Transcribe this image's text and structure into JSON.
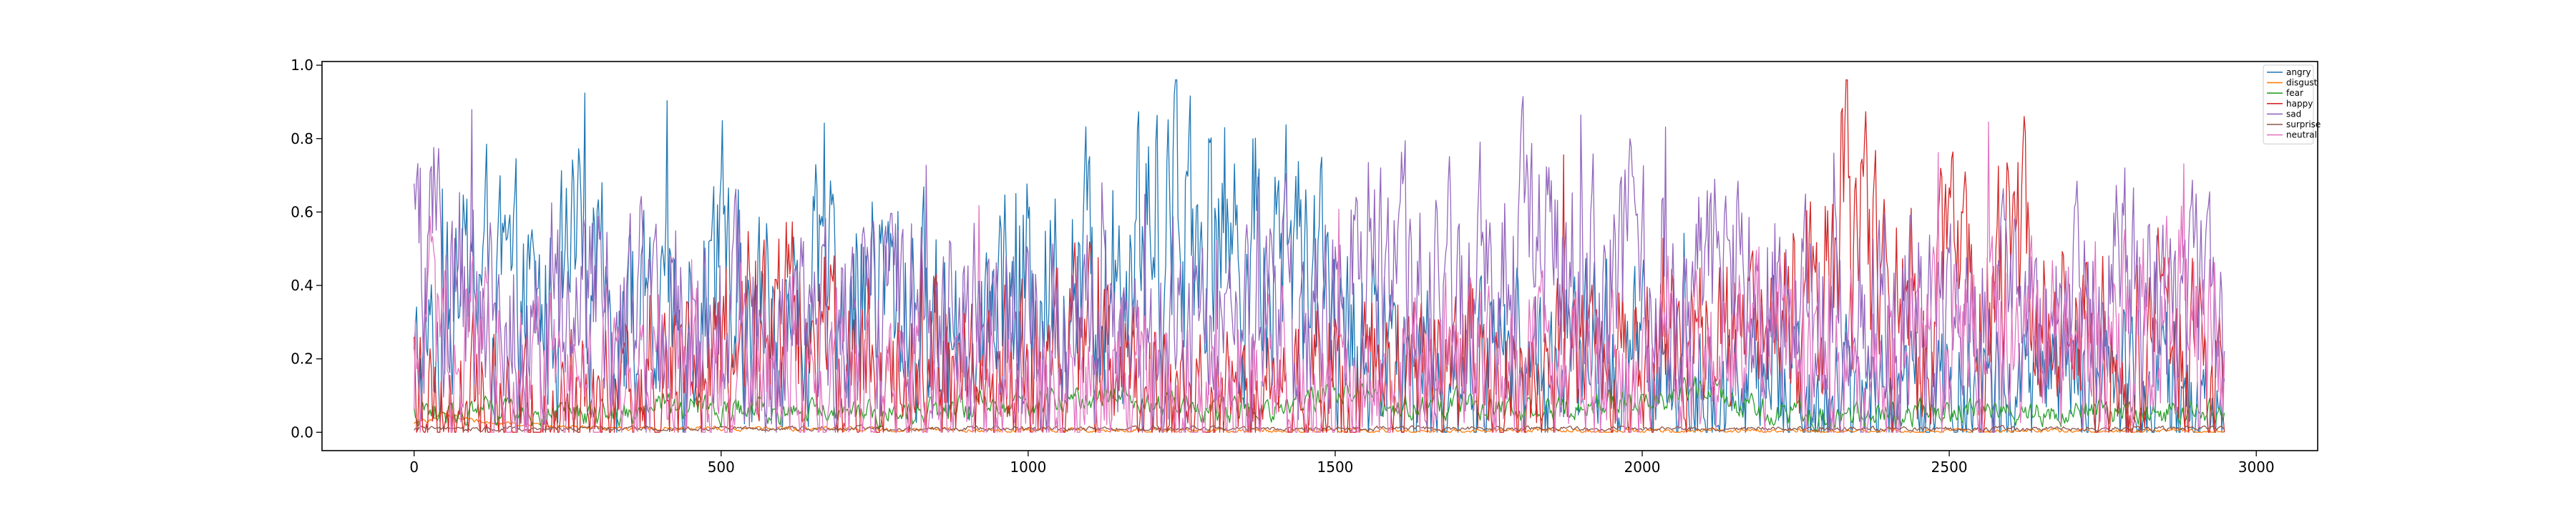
{
  "chart_data": {
    "type": "line",
    "title": "",
    "xlabel": "",
    "ylabel": "",
    "xlim": [
      -150,
      3100
    ],
    "ylim": [
      -0.05,
      1.01
    ],
    "n_points": 2950,
    "xticks": [
      0,
      500,
      1000,
      1500,
      2000,
      2500,
      3000
    ],
    "xtick_labels": [
      "0",
      "500",
      "1000",
      "1500",
      "2000",
      "2500",
      "3000"
    ],
    "yticks": [
      0.0,
      0.2,
      0.4,
      0.6,
      0.8,
      1.0
    ],
    "ytick_labels": [
      "0.0",
      "0.2",
      "0.4",
      "0.6",
      "0.8",
      "1.0"
    ],
    "grid": false,
    "legend_position": "top-right",
    "series": [
      {
        "name": "angry",
        "color": "#1f77b4",
        "anchors": [
          [
            0,
            0.15
          ],
          [
            60,
            0.3
          ],
          [
            100,
            0.42
          ],
          [
            150,
            0.36
          ],
          [
            200,
            0.3
          ],
          [
            260,
            0.4
          ],
          [
            300,
            0.38
          ],
          [
            350,
            0.3
          ],
          [
            400,
            0.25
          ],
          [
            450,
            0.4
          ],
          [
            500,
            0.45
          ],
          [
            550,
            0.35
          ],
          [
            600,
            0.3
          ],
          [
            650,
            0.35
          ],
          [
            700,
            0.38
          ],
          [
            750,
            0.4
          ],
          [
            800,
            0.35
          ],
          [
            850,
            0.3
          ],
          [
            900,
            0.32
          ],
          [
            950,
            0.4
          ],
          [
            1000,
            0.45
          ],
          [
            1050,
            0.4
          ],
          [
            1100,
            0.42
          ],
          [
            1150,
            0.52
          ],
          [
            1200,
            0.58
          ],
          [
            1250,
            0.68
          ],
          [
            1300,
            0.55
          ],
          [
            1350,
            0.5
          ],
          [
            1400,
            0.52
          ],
          [
            1450,
            0.45
          ],
          [
            1500,
            0.3
          ],
          [
            1550,
            0.22
          ],
          [
            1600,
            0.18
          ],
          [
            1650,
            0.2
          ],
          [
            1700,
            0.18
          ],
          [
            1750,
            0.22
          ],
          [
            1800,
            0.2
          ],
          [
            1850,
            0.18
          ],
          [
            1900,
            0.2
          ],
          [
            1950,
            0.22
          ],
          [
            2000,
            0.18
          ],
          [
            2050,
            0.15
          ],
          [
            2100,
            0.12
          ],
          [
            2150,
            0.12
          ],
          [
            2200,
            0.15
          ],
          [
            2250,
            0.12
          ],
          [
            2300,
            0.08
          ],
          [
            2350,
            0.1
          ],
          [
            2400,
            0.12
          ],
          [
            2450,
            0.1
          ],
          [
            2500,
            0.12
          ],
          [
            2550,
            0.12
          ],
          [
            2600,
            0.1
          ],
          [
            2650,
            0.12
          ],
          [
            2700,
            0.15
          ],
          [
            2750,
            0.12
          ],
          [
            2800,
            0.15
          ],
          [
            2850,
            0.12
          ],
          [
            2900,
            0.1
          ],
          [
            2950,
            0.1
          ]
        ]
      },
      {
        "name": "disgust",
        "color": "#ff7f0e",
        "anchors": [
          [
            0,
            0.02
          ],
          [
            50,
            0.05
          ],
          [
            100,
            0.03
          ],
          [
            200,
            0.02
          ],
          [
            300,
            0.01
          ],
          [
            600,
            0.01
          ],
          [
            1000,
            0.005
          ],
          [
            1500,
            0.005
          ],
          [
            2000,
            0.004
          ],
          [
            2500,
            0.004
          ],
          [
            2950,
            0.004
          ]
        ]
      },
      {
        "name": "fear",
        "color": "#2ca02c",
        "anchors": [
          [
            0,
            0.05
          ],
          [
            100,
            0.06
          ],
          [
            200,
            0.05
          ],
          [
            300,
            0.05
          ],
          [
            400,
            0.07
          ],
          [
            500,
            0.06
          ],
          [
            600,
            0.05
          ],
          [
            700,
            0.06
          ],
          [
            800,
            0.05
          ],
          [
            900,
            0.07
          ],
          [
            1000,
            0.08
          ],
          [
            1100,
            0.1
          ],
          [
            1150,
            0.12
          ],
          [
            1200,
            0.08
          ],
          [
            1300,
            0.06
          ],
          [
            1400,
            0.07
          ],
          [
            1500,
            0.12
          ],
          [
            1550,
            0.1
          ],
          [
            1600,
            0.07
          ],
          [
            1700,
            0.08
          ],
          [
            1800,
            0.06
          ],
          [
            1900,
            0.07
          ],
          [
            2000,
            0.08
          ],
          [
            2050,
            0.1
          ],
          [
            2100,
            0.12
          ],
          [
            2150,
            0.08
          ],
          [
            2200,
            0.06
          ],
          [
            2300,
            0.05
          ],
          [
            2400,
            0.05
          ],
          [
            2500,
            0.06
          ],
          [
            2600,
            0.05
          ],
          [
            2700,
            0.06
          ],
          [
            2800,
            0.05
          ],
          [
            2900,
            0.06
          ],
          [
            2950,
            0.05
          ]
        ]
      },
      {
        "name": "happy",
        "color": "#d62728",
        "anchors": [
          [
            0,
            0.12
          ],
          [
            100,
            0.1
          ],
          [
            150,
            0.12
          ],
          [
            200,
            0.08
          ],
          [
            300,
            0.08
          ],
          [
            400,
            0.12
          ],
          [
            500,
            0.25
          ],
          [
            550,
            0.3
          ],
          [
            600,
            0.35
          ],
          [
            650,
            0.28
          ],
          [
            700,
            0.22
          ],
          [
            750,
            0.18
          ],
          [
            800,
            0.2
          ],
          [
            850,
            0.22
          ],
          [
            900,
            0.18
          ],
          [
            1000,
            0.15
          ],
          [
            1100,
            0.2
          ],
          [
            1200,
            0.12
          ],
          [
            1300,
            0.08
          ],
          [
            1400,
            0.1
          ],
          [
            1500,
            0.12
          ],
          [
            1600,
            0.15
          ],
          [
            1700,
            0.18
          ],
          [
            1800,
            0.12
          ],
          [
            1900,
            0.15
          ],
          [
            2000,
            0.2
          ],
          [
            2100,
            0.22
          ],
          [
            2200,
            0.25
          ],
          [
            2300,
            0.45
          ],
          [
            2320,
            0.6
          ],
          [
            2350,
            0.5
          ],
          [
            2400,
            0.35
          ],
          [
            2450,
            0.3
          ],
          [
            2500,
            0.4
          ],
          [
            2550,
            0.32
          ],
          [
            2600,
            0.42
          ],
          [
            2650,
            0.4
          ],
          [
            2700,
            0.25
          ],
          [
            2800,
            0.22
          ],
          [
            2850,
            0.3
          ],
          [
            2900,
            0.2
          ],
          [
            2950,
            0.15
          ]
        ]
      },
      {
        "name": "sad",
        "color": "#9467bd",
        "anchors": [
          [
            0,
            0.42
          ],
          [
            20,
            0.5
          ],
          [
            60,
            0.4
          ],
          [
            100,
            0.3
          ],
          [
            200,
            0.3
          ],
          [
            250,
            0.28
          ],
          [
            300,
            0.35
          ],
          [
            350,
            0.38
          ],
          [
            400,
            0.28
          ],
          [
            450,
            0.35
          ],
          [
            500,
            0.3
          ],
          [
            550,
            0.28
          ],
          [
            600,
            0.25
          ],
          [
            700,
            0.28
          ],
          [
            800,
            0.32
          ],
          [
            850,
            0.3
          ],
          [
            900,
            0.28
          ],
          [
            1000,
            0.3
          ],
          [
            1100,
            0.3
          ],
          [
            1200,
            0.25
          ],
          [
            1300,
            0.22
          ],
          [
            1400,
            0.28
          ],
          [
            1500,
            0.35
          ],
          [
            1600,
            0.38
          ],
          [
            1700,
            0.35
          ],
          [
            1800,
            0.42
          ],
          [
            1900,
            0.4
          ],
          [
            2000,
            0.4
          ],
          [
            2100,
            0.38
          ],
          [
            2200,
            0.4
          ],
          [
            2250,
            0.38
          ],
          [
            2300,
            0.35
          ],
          [
            2400,
            0.38
          ],
          [
            2500,
            0.3
          ],
          [
            2600,
            0.28
          ],
          [
            2700,
            0.35
          ],
          [
            2800,
            0.38
          ],
          [
            2850,
            0.35
          ],
          [
            2900,
            0.32
          ],
          [
            2950,
            0.32
          ]
        ]
      },
      {
        "name": "surprise",
        "color": "#8c564b",
        "anchors": [
          [
            0,
            0.01
          ],
          [
            500,
            0.01
          ],
          [
            1000,
            0.01
          ],
          [
            1500,
            0.01
          ],
          [
            2000,
            0.01
          ],
          [
            2500,
            0.01
          ],
          [
            2950,
            0.01
          ]
        ]
      },
      {
        "name": "neutral",
        "color": "#e377c2",
        "anchors": [
          [
            0,
            0.2
          ],
          [
            100,
            0.18
          ],
          [
            200,
            0.15
          ],
          [
            300,
            0.12
          ],
          [
            400,
            0.15
          ],
          [
            500,
            0.12
          ],
          [
            600,
            0.1
          ],
          [
            700,
            0.12
          ],
          [
            800,
            0.1
          ],
          [
            900,
            0.12
          ],
          [
            1000,
            0.1
          ],
          [
            1100,
            0.12
          ],
          [
            1200,
            0.1
          ],
          [
            1300,
            0.12
          ],
          [
            1400,
            0.12
          ],
          [
            1500,
            0.12
          ],
          [
            1600,
            0.15
          ],
          [
            1700,
            0.18
          ],
          [
            1800,
            0.15
          ],
          [
            1900,
            0.15
          ],
          [
            2000,
            0.18
          ],
          [
            2100,
            0.2
          ],
          [
            2200,
            0.22
          ],
          [
            2300,
            0.15
          ],
          [
            2400,
            0.2
          ],
          [
            2500,
            0.22
          ],
          [
            2600,
            0.25
          ],
          [
            2700,
            0.25
          ],
          [
            2800,
            0.28
          ],
          [
            2900,
            0.3
          ],
          [
            2950,
            0.3
          ]
        ]
      }
    ]
  }
}
